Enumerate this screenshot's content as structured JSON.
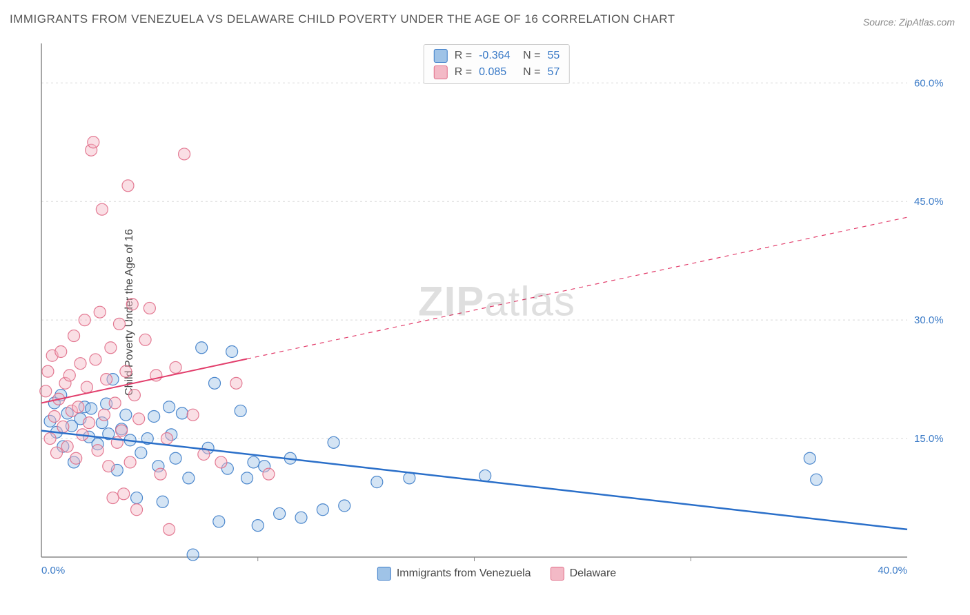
{
  "title": "IMMIGRANTS FROM VENEZUELA VS DELAWARE CHILD POVERTY UNDER THE AGE OF 16 CORRELATION CHART",
  "source": "Source: ZipAtlas.com",
  "y_axis_label": "Child Poverty Under the Age of 16",
  "watermark_bold": "ZIP",
  "watermark_rest": "atlas",
  "chart": {
    "type": "scatter",
    "background_color": "#ffffff",
    "grid_color": "#d8d8d8",
    "axis_color": "#888888",
    "tick_label_color": "#3778c6",
    "xlim": [
      0.0,
      40.0
    ],
    "ylim": [
      0.0,
      65.0
    ],
    "x_ticks": [
      0.0,
      40.0
    ],
    "x_tick_labels": [
      "0.0%",
      "40.0%"
    ],
    "y_ticks": [
      15.0,
      30.0,
      45.0,
      60.0
    ],
    "y_tick_labels": [
      "15.0%",
      "30.0%",
      "45.0%",
      "60.0%"
    ],
    "x_minor_ticks": [
      10.0,
      20.0,
      30.0
    ],
    "marker_radius": 8.5,
    "marker_opacity": 0.45,
    "marker_stroke_opacity": 0.9,
    "series": [
      {
        "name": "Immigrants from Venezuela",
        "fill_color": "#9fc3e7",
        "stroke_color": "#3a7bc8",
        "R": "-0.364",
        "N": "55",
        "trendline": {
          "y_at_xmin": 16.0,
          "y_at_xmax": 3.5,
          "color": "#2a6fc9",
          "width": 2.5,
          "solid_until_x": 40.0
        },
        "points": [
          [
            0.4,
            17.2
          ],
          [
            0.6,
            19.5
          ],
          [
            0.7,
            15.8
          ],
          [
            0.9,
            20.5
          ],
          [
            1.0,
            14.0
          ],
          [
            1.2,
            18.2
          ],
          [
            1.4,
            16.6
          ],
          [
            1.5,
            12.0
          ],
          [
            1.8,
            17.5
          ],
          [
            2.0,
            19.0
          ],
          [
            2.2,
            15.2
          ],
          [
            2.3,
            18.8
          ],
          [
            2.6,
            14.3
          ],
          [
            2.8,
            17.0
          ],
          [
            3.0,
            19.4
          ],
          [
            3.1,
            15.6
          ],
          [
            3.3,
            22.5
          ],
          [
            3.5,
            11.0
          ],
          [
            3.7,
            16.2
          ],
          [
            3.9,
            18.0
          ],
          [
            4.1,
            14.8
          ],
          [
            4.4,
            7.5
          ],
          [
            4.6,
            13.2
          ],
          [
            4.9,
            15.0
          ],
          [
            5.2,
            17.8
          ],
          [
            5.4,
            11.5
          ],
          [
            5.6,
            7.0
          ],
          [
            5.9,
            19.0
          ],
          [
            6.0,
            15.5
          ],
          [
            6.2,
            12.5
          ],
          [
            6.5,
            18.2
          ],
          [
            6.8,
            10.0
          ],
          [
            7.0,
            0.3
          ],
          [
            7.4,
            26.5
          ],
          [
            7.7,
            13.8
          ],
          [
            8.0,
            22.0
          ],
          [
            8.2,
            4.5
          ],
          [
            8.6,
            11.2
          ],
          [
            8.8,
            26.0
          ],
          [
            9.2,
            18.5
          ],
          [
            9.5,
            10.0
          ],
          [
            9.8,
            12.0
          ],
          [
            10.0,
            4.0
          ],
          [
            10.3,
            11.5
          ],
          [
            11.0,
            5.5
          ],
          [
            11.5,
            12.5
          ],
          [
            12.0,
            5.0
          ],
          [
            13.0,
            6.0
          ],
          [
            13.5,
            14.5
          ],
          [
            14.0,
            6.5
          ],
          [
            15.5,
            9.5
          ],
          [
            17.0,
            10.0
          ],
          [
            20.5,
            10.3
          ],
          [
            35.5,
            12.5
          ],
          [
            35.8,
            9.8
          ]
        ]
      },
      {
        "name": "Delaware",
        "fill_color": "#f3b9c6",
        "stroke_color": "#e06b87",
        "R": "0.085",
        "N": "57",
        "trendline": {
          "y_at_xmin": 19.5,
          "y_at_xmax": 43.0,
          "color": "#e23d6b",
          "width": 2.0,
          "solid_until_x": 9.5
        },
        "points": [
          [
            0.2,
            21.0
          ],
          [
            0.3,
            23.5
          ],
          [
            0.4,
            15.0
          ],
          [
            0.5,
            25.5
          ],
          [
            0.6,
            17.8
          ],
          [
            0.7,
            13.2
          ],
          [
            0.8,
            20.0
          ],
          [
            0.9,
            26.0
          ],
          [
            1.0,
            16.5
          ],
          [
            1.1,
            22.0
          ],
          [
            1.2,
            14.0
          ],
          [
            1.3,
            23.0
          ],
          [
            1.4,
            18.5
          ],
          [
            1.5,
            28.0
          ],
          [
            1.6,
            12.5
          ],
          [
            1.7,
            19.0
          ],
          [
            1.8,
            24.5
          ],
          [
            1.9,
            15.5
          ],
          [
            2.0,
            30.0
          ],
          [
            2.1,
            21.5
          ],
          [
            2.2,
            17.0
          ],
          [
            2.3,
            51.5
          ],
          [
            2.4,
            52.5
          ],
          [
            2.5,
            25.0
          ],
          [
            2.6,
            13.5
          ],
          [
            2.7,
            31.0
          ],
          [
            2.8,
            44.0
          ],
          [
            2.9,
            18.0
          ],
          [
            3.0,
            22.5
          ],
          [
            3.1,
            11.5
          ],
          [
            3.2,
            26.5
          ],
          [
            3.3,
            7.5
          ],
          [
            3.4,
            19.5
          ],
          [
            3.5,
            14.5
          ],
          [
            3.6,
            29.5
          ],
          [
            3.7,
            16.0
          ],
          [
            3.8,
            8.0
          ],
          [
            3.9,
            23.5
          ],
          [
            4.0,
            47.0
          ],
          [
            4.1,
            12.0
          ],
          [
            4.2,
            32.0
          ],
          [
            4.3,
            20.5
          ],
          [
            4.4,
            6.0
          ],
          [
            4.5,
            17.5
          ],
          [
            4.8,
            27.5
          ],
          [
            5.0,
            31.5
          ],
          [
            5.3,
            23.0
          ],
          [
            5.5,
            10.5
          ],
          [
            5.8,
            15.0
          ],
          [
            5.9,
            3.5
          ],
          [
            6.2,
            24.0
          ],
          [
            6.6,
            51.0
          ],
          [
            7.0,
            18.0
          ],
          [
            7.5,
            13.0
          ],
          [
            8.3,
            12.0
          ],
          [
            9.0,
            22.0
          ],
          [
            10.5,
            10.5
          ]
        ]
      }
    ],
    "bottom_legend": [
      {
        "label": "Immigrants from Venezuela",
        "fill": "#9fc3e7",
        "stroke": "#3a7bc8"
      },
      {
        "label": "Delaware",
        "fill": "#f3b9c6",
        "stroke": "#e06b87"
      }
    ]
  }
}
